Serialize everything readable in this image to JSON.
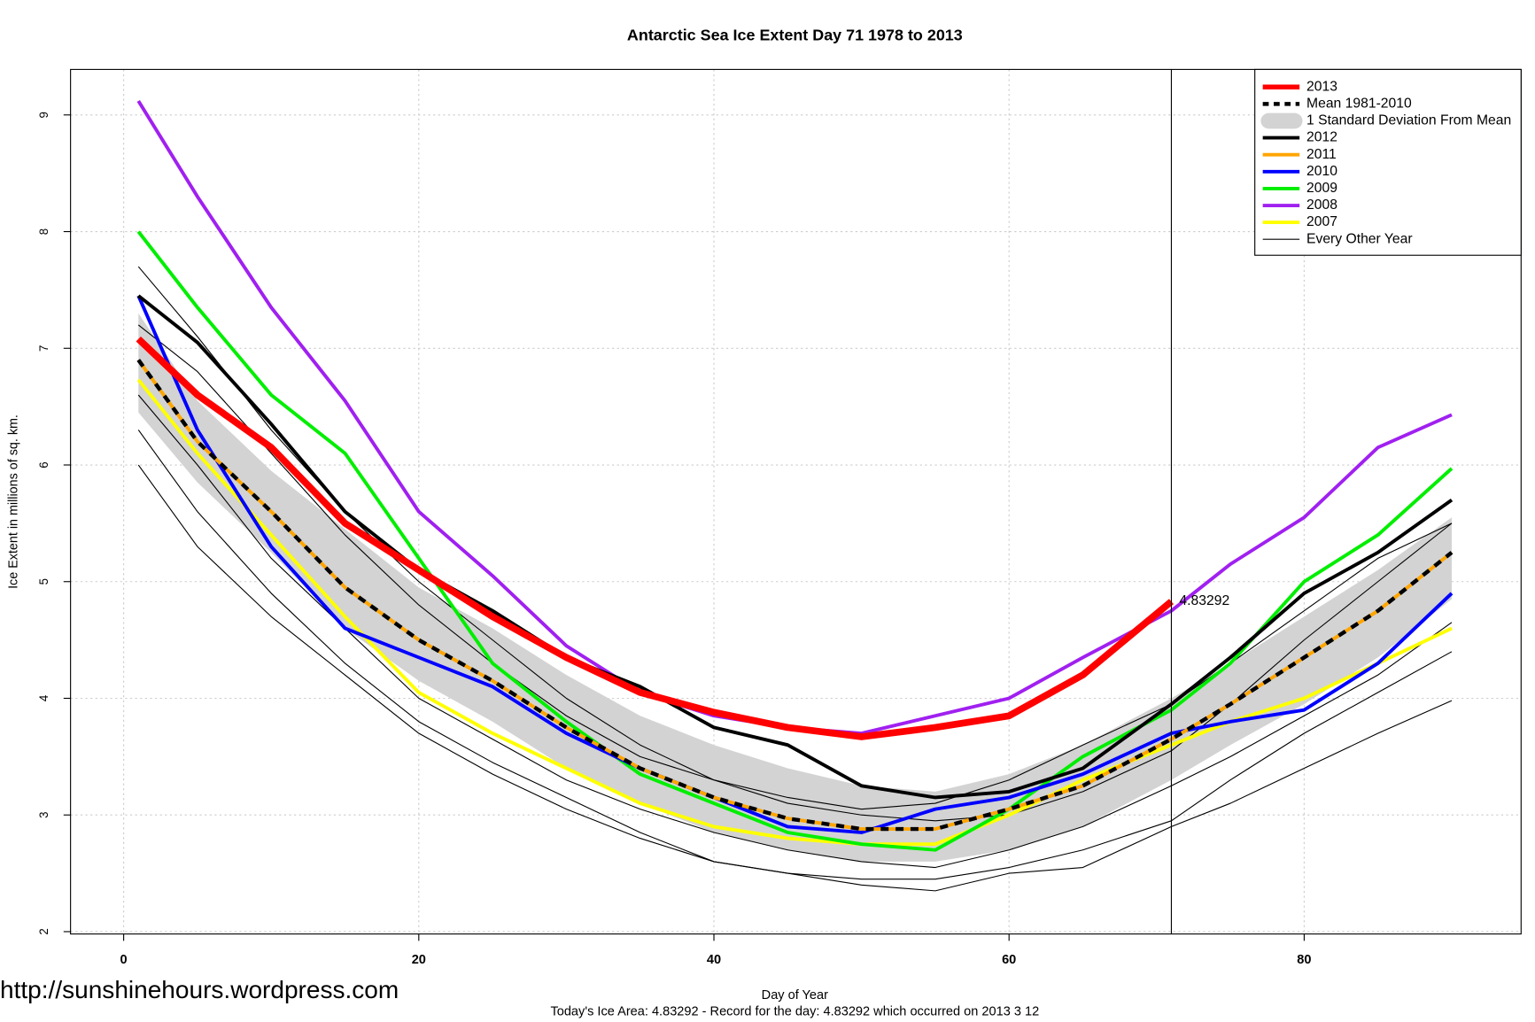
{
  "chart_data": {
    "type": "line",
    "title": "Antarctic Sea Ice Extent Day 71 1978 to 2013",
    "xlabel": "Day of Year",
    "ylabel": "Ice Extent in millions of sq. km.",
    "footer": "Today's Ice Area: 4.83292  - Record for the day: 4.83292 which occurred on 2013 3 12",
    "watermark": "http://sunshinehours.wordpress.com",
    "annotation": "4.83292",
    "vline": 71,
    "xlim": [
      -3.6,
      94.7
    ],
    "ylim": [
      1.98,
      9.39
    ],
    "xticks": [
      0,
      20,
      40,
      60,
      80
    ],
    "yticks": [
      2,
      3,
      4,
      5,
      6,
      7,
      8,
      9
    ],
    "grid": true,
    "legend": "top-right",
    "x": [
      1,
      5,
      10,
      15,
      20,
      25,
      30,
      35,
      40,
      45,
      50,
      55,
      60,
      65,
      71,
      75,
      80,
      85,
      90
    ],
    "series": [
      {
        "name": "2013",
        "color": "#ff0000",
        "width": 7,
        "values": [
          7.08,
          6.6,
          6.15,
          5.5,
          5.1,
          4.7,
          4.35,
          4.05,
          3.88,
          3.75,
          3.67,
          3.75,
          3.85,
          4.2,
          4.83,
          null,
          null,
          null,
          null
        ]
      },
      {
        "name": "Mean 1981-2010",
        "color": "#000000",
        "width": 4,
        "dashed": true,
        "values": [
          6.9,
          6.2,
          5.6,
          4.95,
          4.5,
          4.15,
          3.75,
          3.4,
          3.15,
          2.97,
          2.88,
          2.88,
          3.05,
          3.25,
          3.65,
          3.95,
          4.35,
          4.75,
          5.25
        ]
      },
      {
        "name": "2012",
        "color": "#000000",
        "width": 3.5,
        "values": [
          7.45,
          7.05,
          6.35,
          5.6,
          5.1,
          4.75,
          4.35,
          4.1,
          3.75,
          3.6,
          3.25,
          3.15,
          3.2,
          3.4,
          3.95,
          4.35,
          4.9,
          5.25,
          5.7
        ]
      },
      {
        "name": "2011",
        "color": "#ffa500",
        "width": 3.5,
        "values": [
          6.9,
          6.2,
          5.6,
          4.95,
          4.5,
          4.15,
          3.75,
          3.4,
          3.15,
          2.97,
          2.88,
          2.88,
          3.05,
          3.25,
          3.65,
          3.95,
          4.35,
          4.75,
          5.25
        ]
      },
      {
        "name": "2010",
        "color": "#0000ff",
        "width": 3.5,
        "values": [
          7.45,
          6.3,
          5.3,
          4.6,
          4.35,
          4.1,
          3.7,
          3.4,
          3.15,
          2.9,
          2.85,
          3.05,
          3.15,
          3.35,
          3.7,
          3.8,
          3.9,
          4.3,
          4.9
        ]
      },
      {
        "name": "2009",
        "color": "#00ee00",
        "width": 3.5,
        "values": [
          8.0,
          7.35,
          6.6,
          6.1,
          5.2,
          4.3,
          3.8,
          3.35,
          3.1,
          2.85,
          2.75,
          2.7,
          3.05,
          3.5,
          3.9,
          4.3,
          5.0,
          5.4,
          5.97
        ]
      },
      {
        "name": "2008",
        "color": "#a020f0",
        "width": 3.5,
        "values": [
          9.12,
          8.3,
          7.35,
          6.55,
          5.6,
          5.05,
          4.45,
          4.05,
          3.85,
          3.75,
          3.7,
          3.85,
          4.0,
          4.35,
          4.75,
          5.15,
          5.55,
          6.15,
          6.43
        ]
      },
      {
        "name": "2007",
        "color": "#ffff00",
        "width": 3.5,
        "values": [
          6.73,
          6.1,
          5.4,
          4.7,
          4.05,
          3.7,
          3.4,
          3.1,
          2.9,
          2.8,
          2.75,
          2.75,
          3.0,
          3.3,
          3.6,
          3.8,
          4.0,
          4.3,
          4.6
        ]
      }
    ],
    "band": {
      "name": "1 Standard Deviation From Mean",
      "color": "#d3d3d3",
      "upper": [
        7.3,
        6.55,
        5.95,
        5.45,
        4.95,
        4.6,
        4.2,
        3.85,
        3.6,
        3.4,
        3.25,
        3.2,
        3.35,
        3.6,
        4.0,
        4.3,
        4.7,
        5.1,
        5.55
      ],
      "lower": [
        6.45,
        5.85,
        5.25,
        4.6,
        4.15,
        3.8,
        3.4,
        3.1,
        2.85,
        2.7,
        2.6,
        2.6,
        2.7,
        2.9,
        3.3,
        3.6,
        3.95,
        4.35,
        4.85
      ]
    },
    "other_years": {
      "name": "Every Other Year",
      "color": "#000000",
      "lines": [
        [
          6.3,
          5.6,
          4.9,
          4.3,
          3.8,
          3.45,
          3.15,
          2.85,
          2.6,
          2.5,
          2.4,
          2.35,
          2.5,
          2.55,
          2.9,
          3.1,
          3.4,
          3.7,
          3.98
        ],
        [
          7.7,
          7.1,
          6.3,
          5.6,
          5.0,
          4.5,
          4.0,
          3.6,
          3.3,
          3.1,
          3.0,
          2.95,
          3.0,
          3.2,
          3.55,
          3.95,
          4.5,
          5.0,
          5.5
        ],
        [
          6.0,
          5.3,
          4.7,
          4.2,
          3.7,
          3.35,
          3.05,
          2.8,
          2.6,
          2.5,
          2.45,
          2.45,
          2.55,
          2.7,
          2.95,
          3.3,
          3.7,
          4.05,
          4.4
        ],
        [
          7.2,
          6.8,
          6.1,
          5.4,
          4.8,
          4.3,
          3.85,
          3.5,
          3.3,
          3.15,
          3.05,
          3.1,
          3.3,
          3.6,
          3.95,
          4.3,
          4.75,
          5.2,
          5.5
        ],
        [
          6.6,
          6.0,
          5.2,
          4.6,
          4.0,
          3.65,
          3.3,
          3.05,
          2.85,
          2.7,
          2.6,
          2.55,
          2.7,
          2.9,
          3.25,
          3.5,
          3.85,
          4.2,
          4.65
        ]
      ]
    }
  }
}
